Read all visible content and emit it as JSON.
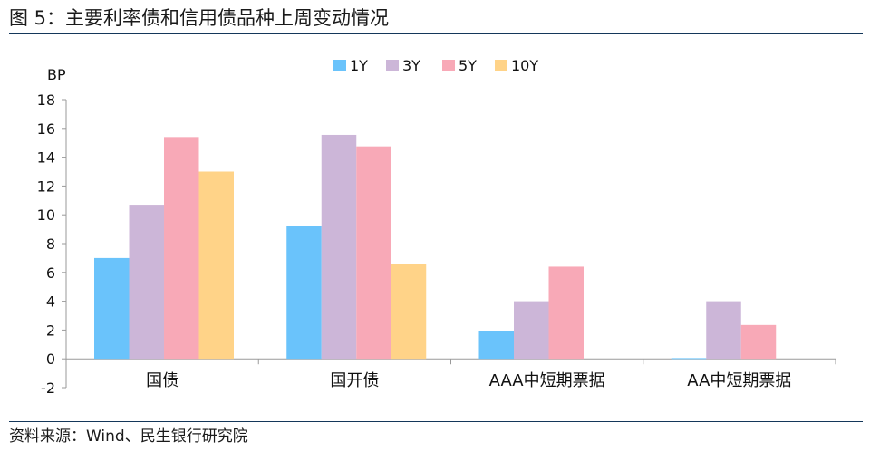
{
  "figure": {
    "title": "图 5：主要利率债和信用债品种上周变动情况",
    "source": "资料来源：Wind、民生银行研究院"
  },
  "colors": {
    "1Y": "#6ac3fb",
    "3Y": "#ccb6d8",
    "5Y": "#f8a9b7",
    "10Y": "#ffd388",
    "rule": "#14375a",
    "axis": "#9a9a9a"
  },
  "chart_data": {
    "type": "bar",
    "ylabel": "BP",
    "ylim": [
      -2,
      18
    ],
    "yticks": [
      -2,
      0,
      2,
      4,
      6,
      8,
      10,
      12,
      14,
      16,
      18
    ],
    "grid": false,
    "legend_position": "top",
    "categories": [
      "国债",
      "国开债",
      "AAA中短期票据",
      "AA中短期票据"
    ],
    "series": [
      {
        "name": "1Y",
        "values": [
          7.0,
          9.2,
          1.95,
          0.05
        ]
      },
      {
        "name": "3Y",
        "values": [
          10.7,
          15.55,
          4.0,
          4.0
        ]
      },
      {
        "name": "5Y",
        "values": [
          15.4,
          14.75,
          6.4,
          2.35
        ]
      },
      {
        "name": "10Y",
        "values": [
          13.0,
          6.6,
          0,
          0
        ]
      }
    ]
  }
}
